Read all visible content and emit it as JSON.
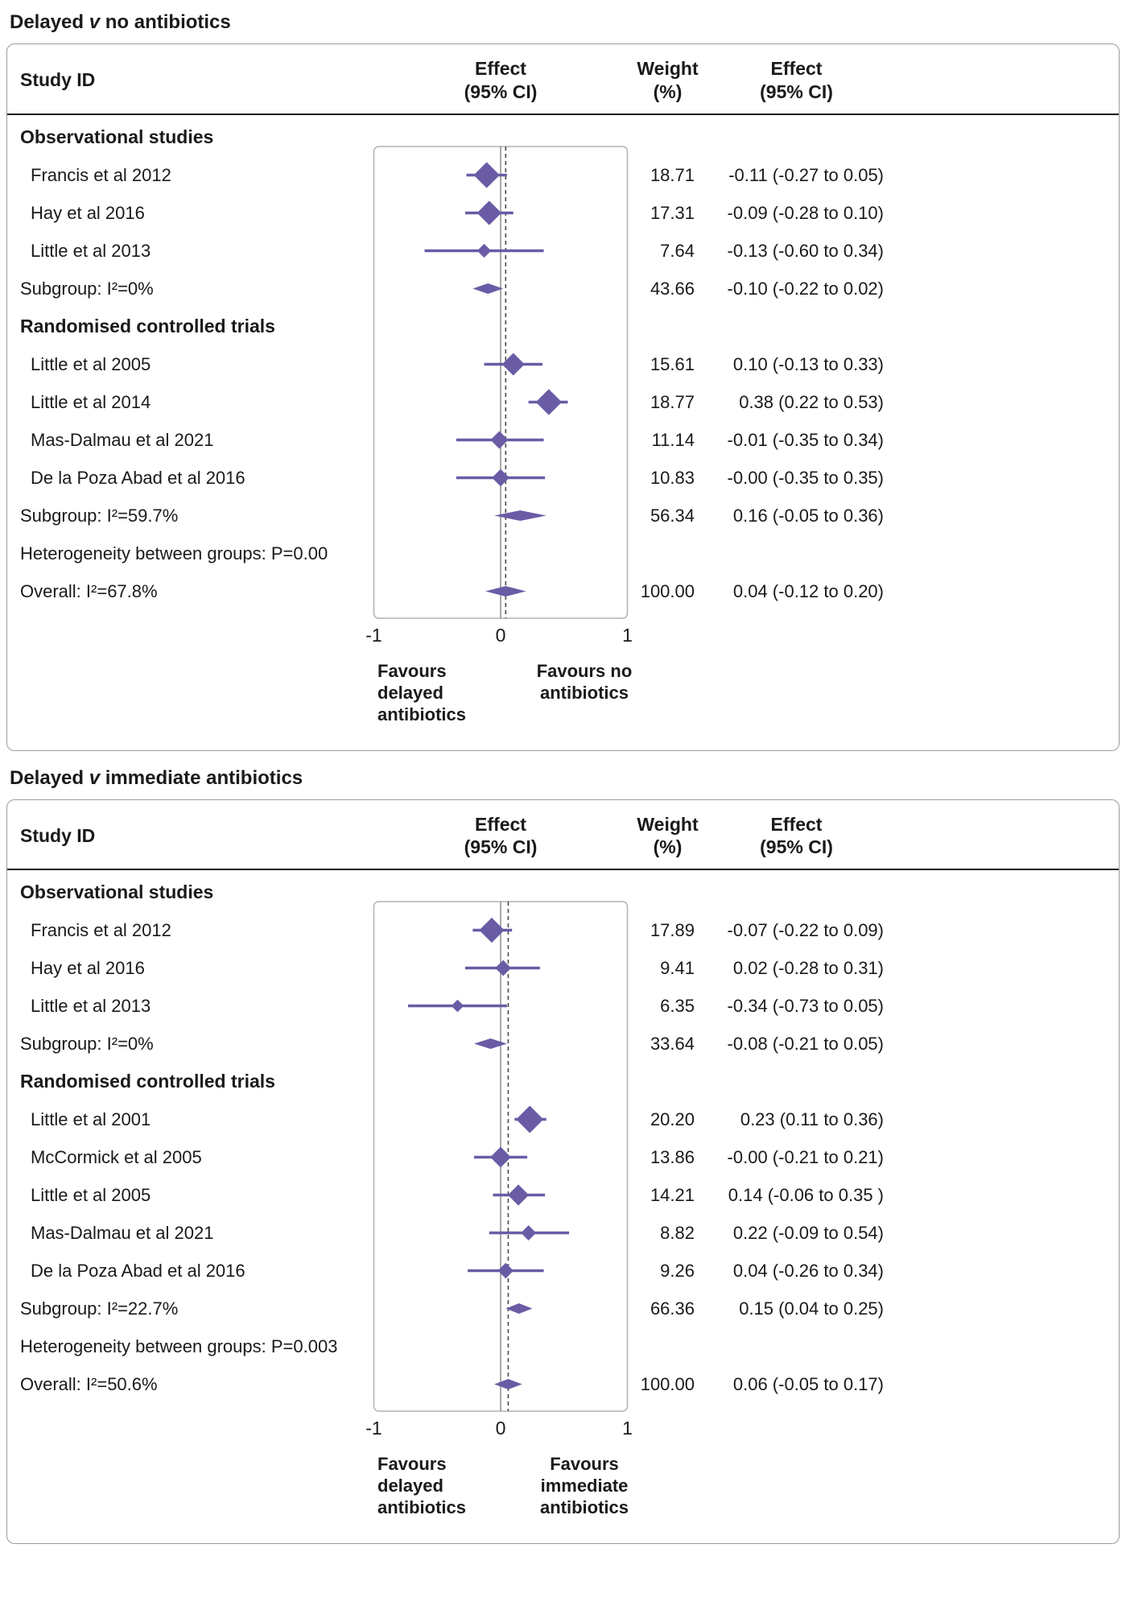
{
  "colors": {
    "accent": "#6a5ba5",
    "plot_border": "#b3b3b3",
    "zero_line": "#8c8c8c",
    "overall_line": "#4a4a4a",
    "panel_border": "#9c9c9c",
    "rule": "#1a1a1a",
    "text": "#1a1a1a"
  },
  "chart_data": {
    "type": "forest",
    "axis": {
      "min": -1,
      "max": 1
    },
    "panels": [
      {
        "title": {
          "pre": "Delayed ",
          "v": "v",
          "post": " no antibiotics"
        },
        "header": {
          "study": "Study ID",
          "effect_l1": "Effect",
          "effect_l2": "(95% CI)",
          "weight_l1": "Weight",
          "weight_l2": "(%)",
          "effect2_l1": "Effect",
          "effect2_l2": "(95% CI)"
        },
        "axis_ticks": [
          {
            "label": "-1",
            "value": -1
          },
          {
            "label": "0",
            "value": 0
          },
          {
            "label": "1",
            "value": 1
          }
        ],
        "favours_left": [
          "Favours",
          "delayed",
          "antibiotics"
        ],
        "favours_right": [
          "Favours no",
          "antibiotics"
        ],
        "rows": [
          {
            "type": "group",
            "label": "Observational studies"
          },
          {
            "type": "study",
            "label": "Francis et al 2012",
            "weight": "18.71",
            "effect": "-0.11 (-0.27 to 0.05)",
            "est": -0.11,
            "lo": -0.27,
            "hi": 0.05,
            "w": 18.71
          },
          {
            "type": "study",
            "label": "Hay et al 2016",
            "weight": "17.31",
            "effect": "-0.09 (-0.28 to 0.10)",
            "est": -0.09,
            "lo": -0.28,
            "hi": 0.1,
            "w": 17.31
          },
          {
            "type": "study",
            "label": "Little et al 2013",
            "weight": "7.64",
            "effect": "-0.13 (-0.60 to 0.34)",
            "est": -0.13,
            "lo": -0.6,
            "hi": 0.34,
            "w": 7.64
          },
          {
            "type": "subgroup",
            "label": "Subgroup: I²=0%",
            "weight": "43.66",
            "effect": "-0.10 (-0.22 to 0.02)",
            "est": -0.1,
            "lo": -0.22,
            "hi": 0.02
          },
          {
            "type": "group",
            "label": "Randomised controlled trials"
          },
          {
            "type": "study",
            "label": "Little et al 2005",
            "weight": "15.61",
            "effect": "0.10 (-0.13 to 0.33)",
            "est": 0.1,
            "lo": -0.13,
            "hi": 0.33,
            "w": 15.61
          },
          {
            "type": "study",
            "label": "Little et al 2014",
            "weight": "18.77",
            "effect": "0.38 (0.22 to 0.53)",
            "est": 0.38,
            "lo": 0.22,
            "hi": 0.53,
            "w": 18.77
          },
          {
            "type": "study",
            "label": "Mas-Dalmau et al 2021",
            "weight": "11.14",
            "effect": "-0.01 (-0.35 to 0.34)",
            "est": -0.01,
            "lo": -0.35,
            "hi": 0.34,
            "w": 11.14
          },
          {
            "type": "study",
            "label": "De la Poza Abad et al 2016",
            "weight": "10.83",
            "effect": "-0.00 (-0.35 to 0.35)",
            "est": 0.0,
            "lo": -0.35,
            "hi": 0.35,
            "w": 10.83
          },
          {
            "type": "subgroup",
            "label": "Subgroup: I²=59.7%",
            "weight": "56.34",
            "effect": "0.16 (-0.05 to 0.36)",
            "est": 0.16,
            "lo": -0.05,
            "hi": 0.36
          },
          {
            "type": "text",
            "label": "Heterogeneity between groups: P=0.00"
          },
          {
            "type": "overall",
            "label": "Overall: I²=67.8%",
            "weight": "100.00",
            "effect": "0.04 (-0.12 to 0.20)",
            "est": 0.04,
            "lo": -0.12,
            "hi": 0.2
          }
        ]
      },
      {
        "title": {
          "pre": "Delayed ",
          "v": "v",
          "post": " immediate antibiotics"
        },
        "header": {
          "study": "Study ID",
          "effect_l1": "Effect",
          "effect_l2": "(95% CI)",
          "weight_l1": "Weight",
          "weight_l2": "(%)",
          "effect2_l1": "Effect",
          "effect2_l2": "(95% CI)"
        },
        "axis_ticks": [
          {
            "label": "-1",
            "value": -1
          },
          {
            "label": "0",
            "value": 0
          },
          {
            "label": "1",
            "value": 1
          }
        ],
        "favours_left": [
          "Favours",
          "delayed",
          "antibiotics"
        ],
        "favours_right": [
          "Favours",
          "immediate",
          "antibiotics"
        ],
        "rows": [
          {
            "type": "group",
            "label": "Observational studies"
          },
          {
            "type": "study",
            "label": "Francis et al 2012",
            "weight": "17.89",
            "effect": "-0.07 (-0.22 to 0.09)",
            "est": -0.07,
            "lo": -0.22,
            "hi": 0.09,
            "w": 17.89
          },
          {
            "type": "study",
            "label": "Hay et al 2016",
            "weight": "9.41",
            "effect": "0.02 (-0.28 to 0.31)",
            "est": 0.02,
            "lo": -0.28,
            "hi": 0.31,
            "w": 9.41
          },
          {
            "type": "study",
            "label": "Little et al 2013",
            "weight": "6.35",
            "effect": "-0.34 (-0.73 to 0.05)",
            "est": -0.34,
            "lo": -0.73,
            "hi": 0.05,
            "w": 6.35
          },
          {
            "type": "subgroup",
            "label": "Subgroup: I²=0%",
            "weight": "33.64",
            "effect": "-0.08 (-0.21 to 0.05)",
            "est": -0.08,
            "lo": -0.21,
            "hi": 0.05
          },
          {
            "type": "group",
            "label": "Randomised controlled trials"
          },
          {
            "type": "study",
            "label": "Little et al 2001",
            "weight": "20.20",
            "effect": "0.23 (0.11 to 0.36)",
            "est": 0.23,
            "lo": 0.11,
            "hi": 0.36,
            "w": 20.2
          },
          {
            "type": "study",
            "label": "McCormick et al 2005",
            "weight": "13.86",
            "effect": "-0.00 (-0.21 to 0.21)",
            "est": 0.0,
            "lo": -0.21,
            "hi": 0.21,
            "w": 13.86
          },
          {
            "type": "study",
            "label": "Little et al 2005",
            "weight": "14.21",
            "effect": "0.14 (-0.06 to 0.35 )",
            "est": 0.14,
            "lo": -0.06,
            "hi": 0.35,
            "w": 14.21
          },
          {
            "type": "study",
            "label": "Mas-Dalmau et al 2021",
            "weight": "8.82",
            "effect": "0.22 (-0.09 to 0.54)",
            "est": 0.22,
            "lo": -0.09,
            "hi": 0.54,
            "w": 8.82
          },
          {
            "type": "study",
            "label": "De la Poza Abad et al 2016",
            "weight": "9.26",
            "effect": "0.04 (-0.26 to 0.34)",
            "est": 0.04,
            "lo": -0.26,
            "hi": 0.34,
            "w": 9.26
          },
          {
            "type": "subgroup",
            "label": "Subgroup: I²=22.7%",
            "weight": "66.36",
            "effect": "0.15 (0.04 to 0.25)",
            "est": 0.15,
            "lo": 0.04,
            "hi": 0.25
          },
          {
            "type": "text",
            "label": "Heterogeneity between groups: P=0.003"
          },
          {
            "type": "overall",
            "label": "Overall: I²=50.6%",
            "weight": "100.00",
            "effect": "0.06 (-0.05 to 0.17)",
            "est": 0.06,
            "lo": -0.05,
            "hi": 0.17
          }
        ]
      }
    ]
  }
}
